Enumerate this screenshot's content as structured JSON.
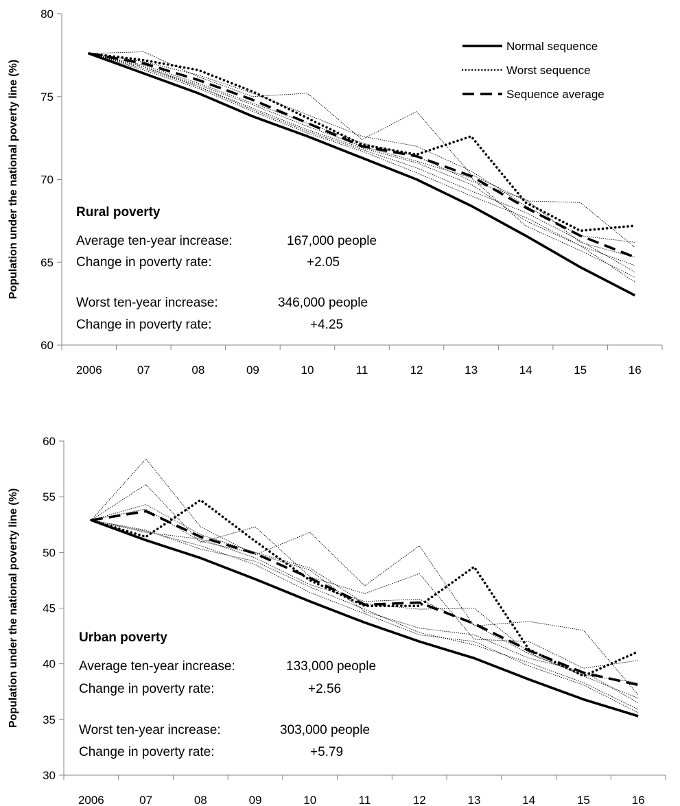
{
  "legend": [
    {
      "key": "normal",
      "label": "Normal sequence"
    },
    {
      "key": "worst",
      "label": "Worst sequence"
    },
    {
      "key": "average",
      "label": "Sequence average"
    }
  ],
  "chart_data": [
    {
      "type": "line",
      "ylabel": "Population under the national poverty line (%)",
      "categories": [
        "2006",
        "07",
        "08",
        "09",
        "10",
        "11",
        "12",
        "13",
        "14",
        "15",
        "16"
      ],
      "ylim": [
        60,
        80
      ],
      "yticks": [
        60,
        65,
        70,
        75,
        80
      ],
      "legend_position": "top-right",
      "annotation": {
        "title": "Rural poverty",
        "rows": [
          {
            "label": "Average ten-year increase:",
            "value": "167,000 people"
          },
          {
            "label": "Change in poverty rate:",
            "value": "+2.05"
          },
          {
            "label": "Worst ten-year increase:",
            "value": "346,000 people"
          },
          {
            "label": "Change in poverty rate:",
            "value": "+4.25"
          }
        ]
      },
      "series": [
        {
          "key": "normal",
          "name": "Normal sequence",
          "values": [
            77.6,
            76.4,
            75.2,
            73.8,
            72.6,
            71.3,
            70.0,
            68.4,
            66.6,
            64.7,
            63.0
          ]
        },
        {
          "key": "worst",
          "name": "Worst sequence",
          "values": [
            77.6,
            77.2,
            76.6,
            75.3,
            73.7,
            72.1,
            71.5,
            72.6,
            68.6,
            66.9,
            67.2
          ]
        },
        {
          "key": "average",
          "name": "Sequence average",
          "values": [
            77.6,
            77.0,
            76.0,
            74.8,
            73.4,
            72.0,
            71.4,
            70.2,
            68.3,
            66.6,
            65.3
          ]
        },
        {
          "key": "sample",
          "values": [
            77.6,
            77.7,
            76.2,
            75.0,
            75.2,
            72.4,
            74.1,
            70.3,
            68.7,
            68.6,
            65.9
          ]
        },
        {
          "key": "sample",
          "values": [
            77.6,
            77.1,
            76.3,
            75.2,
            73.9,
            72.6,
            72.0,
            70.5,
            68.4,
            66.6,
            66.2
          ]
        },
        {
          "key": "sample",
          "values": [
            77.6,
            76.9,
            75.8,
            74.6,
            73.4,
            72.2,
            71.4,
            69.9,
            68.8,
            66.2,
            65.3
          ]
        },
        {
          "key": "sample",
          "values": [
            77.6,
            76.8,
            75.6,
            74.3,
            73.0,
            71.9,
            71.0,
            69.7,
            67.5,
            66.0,
            64.8
          ]
        },
        {
          "key": "sample",
          "values": [
            77.6,
            76.7,
            75.6,
            74.2,
            72.9,
            71.8,
            70.7,
            69.3,
            68.0,
            66.3,
            64.4
          ]
        },
        {
          "key": "sample",
          "values": [
            77.6,
            76.6,
            75.5,
            74.1,
            72.8,
            71.7,
            70.4,
            69.0,
            67.7,
            66.0,
            63.8
          ]
        },
        {
          "key": "sample",
          "values": [
            77.6,
            76.8,
            75.7,
            74.5,
            73.2,
            72.0,
            71.1,
            70.1,
            67.2,
            65.7,
            64.1
          ]
        }
      ]
    },
    {
      "type": "line",
      "ylabel": "Population under the national poverty line (%)",
      "categories": [
        "2006",
        "07",
        "08",
        "09",
        "10",
        "11",
        "12",
        "13",
        "14",
        "15",
        "16"
      ],
      "ylim": [
        30,
        60
      ],
      "yticks": [
        30,
        35,
        40,
        45,
        50,
        55,
        60
      ],
      "annotation": {
        "title": "Urban poverty",
        "rows": [
          {
            "label": "Average ten-year increase:",
            "value": "133,000 people"
          },
          {
            "label": "Change in poverty rate:",
            "value": "+2.56"
          },
          {
            "label": "Worst ten-year increase:",
            "value": "303,000 people"
          },
          {
            "label": "Change in poverty rate:",
            "value": "+5.79"
          }
        ]
      },
      "series": [
        {
          "key": "normal",
          "name": "Normal sequence",
          "values": [
            52.9,
            51.1,
            49.5,
            47.6,
            45.6,
            43.7,
            42.0,
            40.5,
            38.6,
            36.8,
            35.3
          ]
        },
        {
          "key": "worst",
          "name": "Worst sequence",
          "values": [
            52.9,
            51.4,
            54.7,
            51.0,
            47.5,
            45.2,
            45.2,
            48.7,
            41.3,
            38.9,
            41.1
          ]
        },
        {
          "key": "average",
          "name": "Sequence average",
          "values": [
            52.9,
            53.7,
            51.4,
            49.9,
            47.7,
            45.3,
            45.5,
            43.6,
            41.2,
            39.2,
            38.1
          ]
        },
        {
          "key": "sample",
          "values": [
            52.9,
            58.4,
            52.3,
            49.8,
            51.8,
            47.0,
            50.6,
            43.4,
            43.8,
            43.0,
            37.2
          ]
        },
        {
          "key": "sample",
          "values": [
            52.9,
            56.1,
            50.9,
            52.3,
            47.8,
            46.3,
            48.1,
            42.2,
            42.0,
            39.6,
            40.3
          ]
        },
        {
          "key": "sample",
          "values": [
            52.9,
            54.3,
            51.6,
            50.0,
            48.6,
            45.4,
            44.9,
            45.0,
            41.0,
            38.9,
            36.9
          ]
        },
        {
          "key": "sample",
          "values": [
            52.9,
            53.9,
            51.0,
            49.9,
            48.4,
            44.7,
            43.2,
            42.6,
            40.5,
            39.3,
            36.5
          ]
        },
        {
          "key": "sample",
          "values": [
            52.9,
            52.0,
            50.3,
            49.2,
            46.9,
            44.9,
            42.8,
            41.7,
            40.1,
            38.3,
            35.9
          ]
        },
        {
          "key": "sample",
          "values": [
            52.9,
            51.9,
            50.6,
            48.9,
            46.4,
            44.5,
            42.6,
            42.0,
            39.8,
            38.1,
            35.6
          ]
        },
        {
          "key": "sample",
          "values": [
            52.9,
            51.8,
            51.2,
            49.5,
            47.1,
            45.6,
            45.8,
            43.5,
            40.9,
            39.0,
            38.3
          ]
        }
      ]
    }
  ]
}
